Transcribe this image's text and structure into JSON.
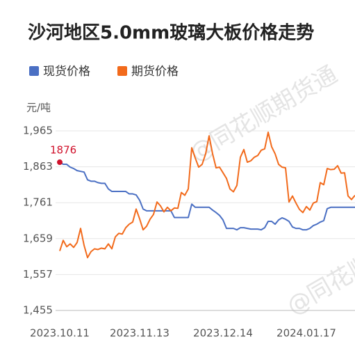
{
  "chart_data": {
    "type": "line",
    "title": "沙河地区5.0mm玻璃大板价格走势",
    "y_unit": "元/吨",
    "watermark": "@同花顺期货通",
    "ylim": [
      1455,
      1965
    ],
    "yticks": [
      {
        "value": 1455,
        "label": "1,455"
      },
      {
        "value": 1557,
        "label": "1,557"
      },
      {
        "value": 1659,
        "label": "1,659"
      },
      {
        "value": 1761,
        "label": "1,761"
      },
      {
        "value": 1863,
        "label": "1,863"
      },
      {
        "value": 1965,
        "label": "1,965"
      }
    ],
    "grid": true,
    "categories": [
      "2023.10.11",
      null,
      null,
      null,
      null,
      null,
      null,
      null,
      null,
      null,
      null,
      null,
      null,
      null,
      null,
      null,
      null,
      null,
      null,
      null,
      null,
      null,
      null,
      "2023.11.13",
      null,
      null,
      null,
      null,
      null,
      null,
      null,
      null,
      null,
      null,
      null,
      null,
      null,
      null,
      null,
      null,
      null,
      null,
      null,
      null,
      null,
      null,
      null,
      "2023.12.14",
      null,
      null,
      null,
      null,
      null,
      null,
      null,
      null,
      null,
      null,
      null,
      null,
      null,
      null,
      null,
      null,
      null,
      null,
      null,
      null,
      null,
      null,
      null,
      "2024.01.17",
      null,
      null,
      null,
      null,
      null,
      null,
      null,
      null,
      null,
      null,
      null,
      null,
      null,
      null
    ],
    "series": [
      {
        "name": "现货价格",
        "color": "#4a6fc3",
        "values": [
          1876,
          1870,
          1870,
          1862,
          1858,
          1852,
          1850,
          1848,
          1826,
          1822,
          1822,
          1818,
          1816,
          1816,
          1800,
          1793,
          1793,
          1793,
          1793,
          1793,
          1786,
          1786,
          1783,
          1768,
          1743,
          1738,
          1738,
          1738,
          1738,
          1738,
          1738,
          1738,
          1738,
          1719,
          1719,
          1719,
          1719,
          1719,
          1757,
          1748,
          1748,
          1748,
          1748,
          1748,
          1740,
          1733,
          1725,
          1712,
          1688,
          1688,
          1688,
          1684,
          1690,
          1690,
          1688,
          1686,
          1686,
          1686,
          1684,
          1690,
          1708,
          1708,
          1700,
          1712,
          1718,
          1714,
          1708,
          1692,
          1688,
          1688,
          1684,
          1684,
          1688,
          1696,
          1700,
          1706,
          1710,
          1744,
          1748,
          1748,
          1748,
          1748,
          1748,
          1748,
          1748,
          1748
        ]
      },
      {
        "name": "期货价格",
        "color": "#f26a1b",
        "values": [
          1624,
          1654,
          1636,
          1644,
          1634,
          1648,
          1688,
          1640,
          1605,
          1622,
          1630,
          1628,
          1632,
          1630,
          1644,
          1630,
          1664,
          1674,
          1672,
          1690,
          1700,
          1706,
          1743,
          1715,
          1684,
          1694,
          1714,
          1728,
          1763,
          1752,
          1735,
          1748,
          1738,
          1746,
          1745,
          1790,
          1782,
          1800,
          1917,
          1888,
          1862,
          1870,
          1900,
          1951,
          1900,
          1860,
          1862,
          1846,
          1830,
          1800,
          1792,
          1810,
          1890,
          1912,
          1876,
          1880,
          1890,
          1895,
          1910,
          1914,
          1961,
          1920,
          1900,
          1870,
          1862,
          1860,
          1763,
          1780,
          1760,
          1742,
          1733,
          1750,
          1740,
          1760,
          1764,
          1818,
          1812,
          1858,
          1855,
          1856,
          1866,
          1845,
          1846,
          1780,
          1770,
          1782
        ]
      }
    ],
    "annotation_color": "#d0112b"
  }
}
